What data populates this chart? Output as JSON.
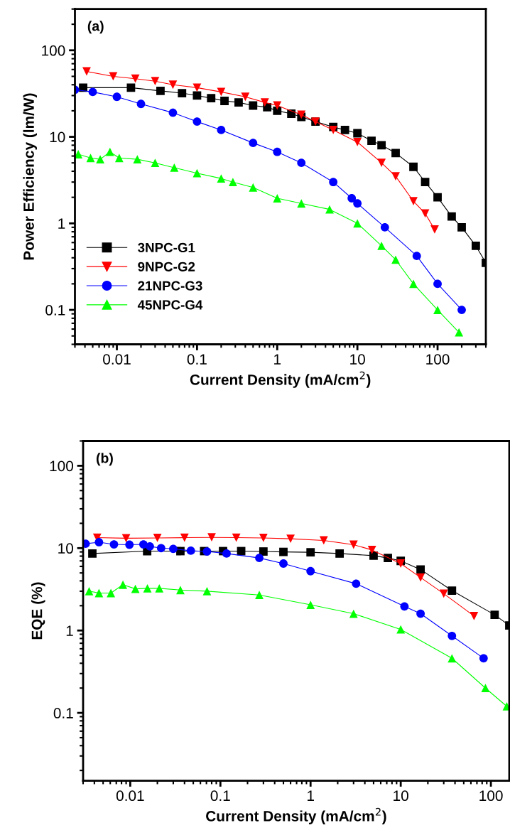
{
  "chart_data": [
    {
      "type": "line",
      "xlabel": "Current Density (mA/cm$^{2}$)",
      "ylabel": "Power Efficiency (lm/W)",
      "annotations": [
        "(a)"
      ],
      "log": "xy",
      "xlim": [
        0.003,
        400
      ],
      "ylim": [
        0.04,
        300
      ],
      "xticks": [
        0.01,
        0.1,
        1,
        10,
        100
      ],
      "yticks": [
        0.1,
        1,
        10,
        100
      ],
      "legend": "bottom left",
      "grid": false,
      "line_style": "solid",
      "series": [
        {
          "name": "3NPC-G1",
          "color": "#000000",
          "marker": "square",
          "x": [
            0.0038,
            0.015,
            0.035,
            0.065,
            0.1,
            0.15,
            0.22,
            0.33,
            0.5,
            0.75,
            1,
            1.5,
            2,
            3,
            5,
            7,
            10,
            15,
            20,
            30,
            50,
            70,
            100,
            150,
            200,
            300,
            400
          ],
          "values": [
            37,
            37,
            34,
            32,
            30,
            28,
            26,
            25,
            23,
            22,
            20,
            18.5,
            17,
            15,
            13,
            12,
            11,
            9,
            8,
            6.5,
            4.5,
            3,
            2,
            1.2,
            0.9,
            0.55,
            0.35
          ]
        },
        {
          "name": "9NPC-G2",
          "color": "#ff0000",
          "marker": "triangle_down",
          "x": [
            0.0042,
            0.009,
            0.017,
            0.03,
            0.05,
            0.1,
            0.2,
            0.4,
            0.7,
            1,
            2,
            3,
            5,
            10,
            20,
            30,
            50,
            70,
            92
          ],
          "values": [
            57,
            50,
            47,
            44,
            40,
            37,
            33,
            29,
            25,
            23,
            18,
            15,
            12,
            8.7,
            5,
            3.5,
            1.8,
            1.3,
            0.85
          ]
        },
        {
          "name": "21NPC-G3",
          "color": "#0000ff",
          "marker": "circle",
          "x": [
            0.003,
            0.005,
            0.01,
            0.02,
            0.05,
            0.1,
            0.2,
            0.5,
            1,
            2,
            5,
            8.5,
            10,
            22,
            55,
            100,
            200
          ],
          "values": [
            35,
            33,
            29,
            24,
            19,
            15,
            12,
            8.5,
            6.7,
            5,
            3,
            1.95,
            1.7,
            0.9,
            0.42,
            0.2,
            0.1
          ]
        },
        {
          "name": "45NPC-G4",
          "color": "#00ff00",
          "marker": "triangle",
          "x": [
            0.0033,
            0.0047,
            0.0062,
            0.0082,
            0.0107,
            0.018,
            0.03,
            0.052,
            0.1,
            0.2,
            0.28,
            0.5,
            1,
            2,
            4.5,
            10,
            20,
            30,
            50,
            100,
            185
          ],
          "values": [
            6.3,
            5.7,
            5.5,
            6.7,
            5.7,
            5.5,
            5,
            4.4,
            3.8,
            3.3,
            3,
            2.6,
            1.95,
            1.7,
            1.45,
            1.0,
            0.55,
            0.38,
            0.2,
            0.1,
            0.055
          ]
        }
      ]
    },
    {
      "type": "line",
      "xlabel": "Current Density (mA/cm$^{2}$)",
      "ylabel": "EQE (%)",
      "annotations": [
        "(b)"
      ],
      "log": "xy",
      "xlim": [
        0.003,
        160
      ],
      "ylim": [
        0.015,
        200
      ],
      "xticks": [
        0.01,
        0.1,
        1,
        10,
        100
      ],
      "yticks": [
        0.1,
        1,
        10,
        100
      ],
      "grid": false,
      "line_style": "solid",
      "series": [
        {
          "color": "#000000",
          "marker": "square",
          "x": [
            0.0038,
            0.0154,
            0.036,
            0.066,
            0.107,
            0.17,
            0.3,
            0.5,
            1,
            2.1,
            5,
            7.2,
            10,
            16.6,
            37,
            110,
            160
          ],
          "values": [
            8.6,
            9.2,
            9.2,
            9.2,
            9.2,
            9.2,
            9.1,
            9,
            8.9,
            8.6,
            8.1,
            7.6,
            7,
            5.5,
            3.05,
            1.55,
            1.15
          ]
        },
        {
          "color": "#ff0000",
          "marker": "triangle_down",
          "x": [
            0.0043,
            0.009,
            0.02,
            0.04,
            0.08,
            0.15,
            0.3,
            0.6,
            1.4,
            3,
            4.8,
            10,
            16.6,
            30,
            65
          ],
          "values": [
            13.4,
            13.2,
            13.3,
            13.4,
            13.5,
            13.4,
            13.3,
            13,
            12.4,
            11,
            9.5,
            6.5,
            4.4,
            2.8,
            1.5
          ]
        },
        {
          "color": "#0000ff",
          "marker": "circle",
          "x": [
            0.0032,
            0.0045,
            0.0066,
            0.0098,
            0.014,
            0.0165,
            0.022,
            0.03,
            0.047,
            0.071,
            0.117,
            0.27,
            0.5,
            1,
            3.2,
            11,
            16.6,
            37,
            83
          ],
          "values": [
            11.3,
            11.8,
            11.1,
            11,
            11.1,
            10.5,
            10,
            9.8,
            9.3,
            9.1,
            8.6,
            7.6,
            6.5,
            5.25,
            3.7,
            1.96,
            1.6,
            0.86,
            0.46
          ]
        },
        {
          "color": "#00ff00",
          "marker": "triangle",
          "x": [
            0.0035,
            0.0045,
            0.0061,
            0.0083,
            0.0114,
            0.0155,
            0.021,
            0.036,
            0.071,
            0.27,
            1,
            3,
            10,
            37,
            87,
            150
          ],
          "values": [
            3,
            2.85,
            2.85,
            3.6,
            3.2,
            3.25,
            3.25,
            3.1,
            3,
            2.7,
            2.05,
            1.6,
            1.03,
            0.46,
            0.2,
            0.12
          ]
        }
      ]
    }
  ]
}
